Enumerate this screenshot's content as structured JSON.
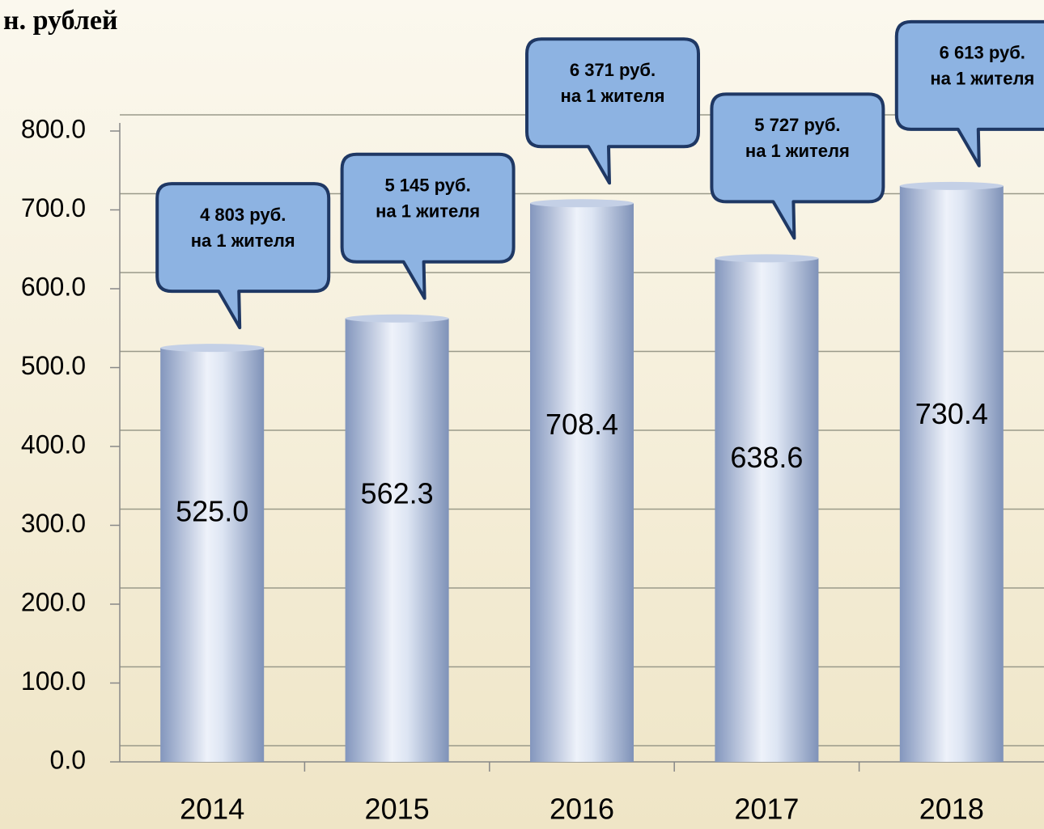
{
  "chart_data": {
    "type": "bar",
    "title": "н. рублей",
    "categories": [
      "2014",
      "2015",
      "2016",
      "2017",
      "2018"
    ],
    "values": [
      525.0,
      562.3,
      708.4,
      638.6,
      730.4
    ],
    "value_labels": [
      "525.0",
      "562.3",
      "708.4",
      "638.6",
      "730.4"
    ],
    "annotations": [
      [
        "4 803 руб.",
        "на 1 жителя"
      ],
      [
        "5 145 руб.",
        "на 1 жителя"
      ],
      [
        "6 371 руб.",
        "на 1 жителя"
      ],
      [
        "5 727 руб.",
        "на 1 жителя"
      ],
      [
        "6 613 руб.",
        "на 1 жителя"
      ]
    ],
    "color": "#a9b9d6",
    "ylim": [
      0,
      800
    ],
    "yticks": [
      {
        "value": 0,
        "label": "0.0"
      },
      {
        "value": 100,
        "label": "100.0"
      },
      {
        "value": 200,
        "label": "200.0"
      },
      {
        "value": 300,
        "label": "300.0"
      },
      {
        "value": 400,
        "label": "400.0"
      },
      {
        "value": 500,
        "label": "500.0"
      },
      {
        "value": 600,
        "label": "600.0"
      },
      {
        "value": 700,
        "label": "700.0"
      },
      {
        "value": 800,
        "label": "800.0"
      }
    ],
    "grid": true
  }
}
